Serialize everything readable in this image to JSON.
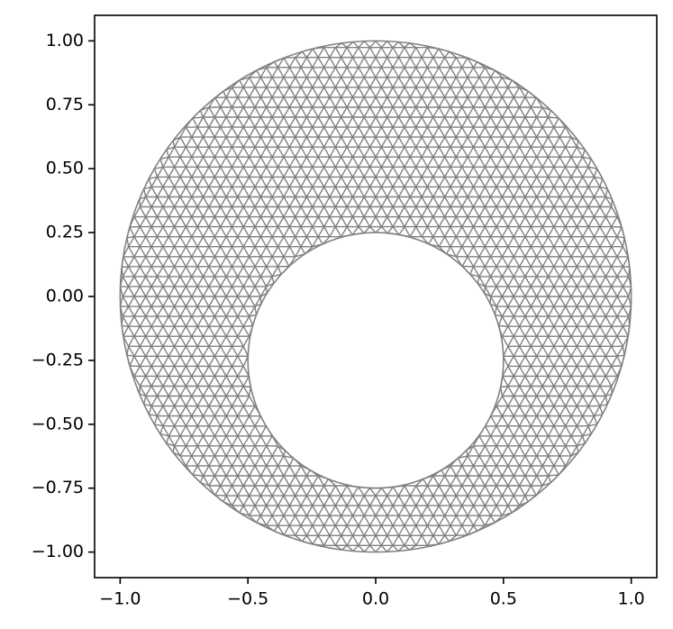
{
  "chart_data": {
    "type": "triplot",
    "color": "#808080",
    "outer": {
      "center": [
        0,
        0
      ],
      "radius": 1
    },
    "inner": {
      "center": [
        0,
        -0.25
      ],
      "radius": 0.5
    },
    "xlim": [
      -1.1,
      1.1
    ],
    "ylim": [
      -1.1,
      1.1
    ],
    "xticks": [
      {
        "value": -1.0,
        "label": "−1.0"
      },
      {
        "value": -0.5,
        "label": "−0.5"
      },
      {
        "value": 0.0,
        "label": "0.0"
      },
      {
        "value": 0.5,
        "label": "0.5"
      },
      {
        "value": 1.0,
        "label": "1.0"
      }
    ],
    "yticks": [
      {
        "value": -1.0,
        "label": "−1.00"
      },
      {
        "value": -0.75,
        "label": "−0.75"
      },
      {
        "value": -0.5,
        "label": "−0.50"
      },
      {
        "value": -0.25,
        "label": "−0.25"
      },
      {
        "value": 0.0,
        "label": "0.00"
      },
      {
        "value": 0.25,
        "label": "0.25"
      },
      {
        "value": 0.5,
        "label": "0.50"
      },
      {
        "value": 0.75,
        "label": "0.75"
      },
      {
        "value": 1.0,
        "label": "1.00"
      }
    ]
  }
}
